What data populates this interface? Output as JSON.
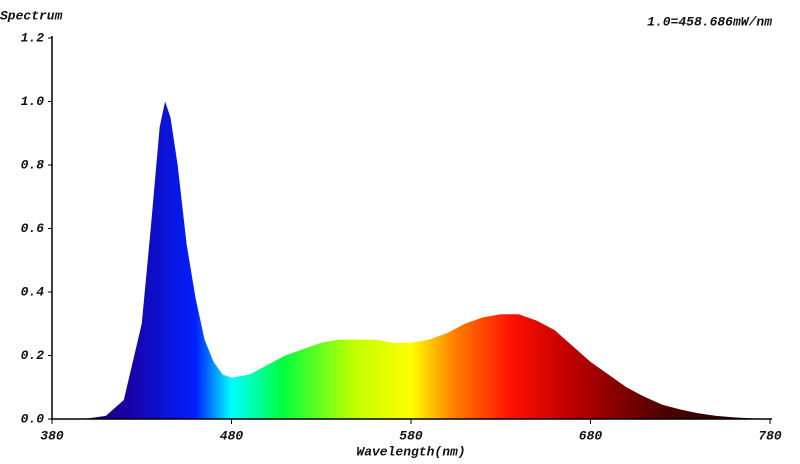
{
  "chart_data": {
    "type": "area",
    "y_label": "Spectrum",
    "x_label": "Wavelength(nm)",
    "annotation": "1.0=458.686mW/nm",
    "x": [
      380,
      390,
      400,
      410,
      420,
      430,
      435,
      440,
      443,
      446,
      450,
      455,
      460,
      465,
      470,
      475,
      480,
      490,
      500,
      510,
      520,
      530,
      540,
      550,
      560,
      570,
      580,
      590,
      600,
      610,
      620,
      630,
      640,
      650,
      660,
      670,
      680,
      690,
      700,
      710,
      720,
      730,
      740,
      750,
      760,
      770,
      780
    ],
    "values": [
      0,
      0,
      0.002,
      0.01,
      0.06,
      0.3,
      0.6,
      0.92,
      1.0,
      0.95,
      0.8,
      0.55,
      0.38,
      0.25,
      0.18,
      0.14,
      0.13,
      0.14,
      0.17,
      0.2,
      0.22,
      0.24,
      0.25,
      0.25,
      0.25,
      0.24,
      0.24,
      0.25,
      0.27,
      0.3,
      0.32,
      0.33,
      0.33,
      0.31,
      0.28,
      0.23,
      0.18,
      0.14,
      0.1,
      0.07,
      0.045,
      0.03,
      0.018,
      0.01,
      0.005,
      0.002,
      0
    ],
    "xlim": [
      380,
      780
    ],
    "xticks": [
      380,
      480,
      580,
      680,
      780
    ],
    "ylim": [
      0,
      1.2
    ],
    "yticks": [
      {
        "value": 0,
        "label": "0.0"
      },
      {
        "value": 0.2,
        "label": "0.2"
      },
      {
        "value": 0.4,
        "label": "0.4"
      },
      {
        "value": 0.6,
        "label": "0.6"
      },
      {
        "value": 0.8,
        "label": "0.8"
      },
      {
        "value": 1,
        "label": "1.0"
      },
      {
        "value": 1.2,
        "label": "1.2"
      }
    ]
  }
}
